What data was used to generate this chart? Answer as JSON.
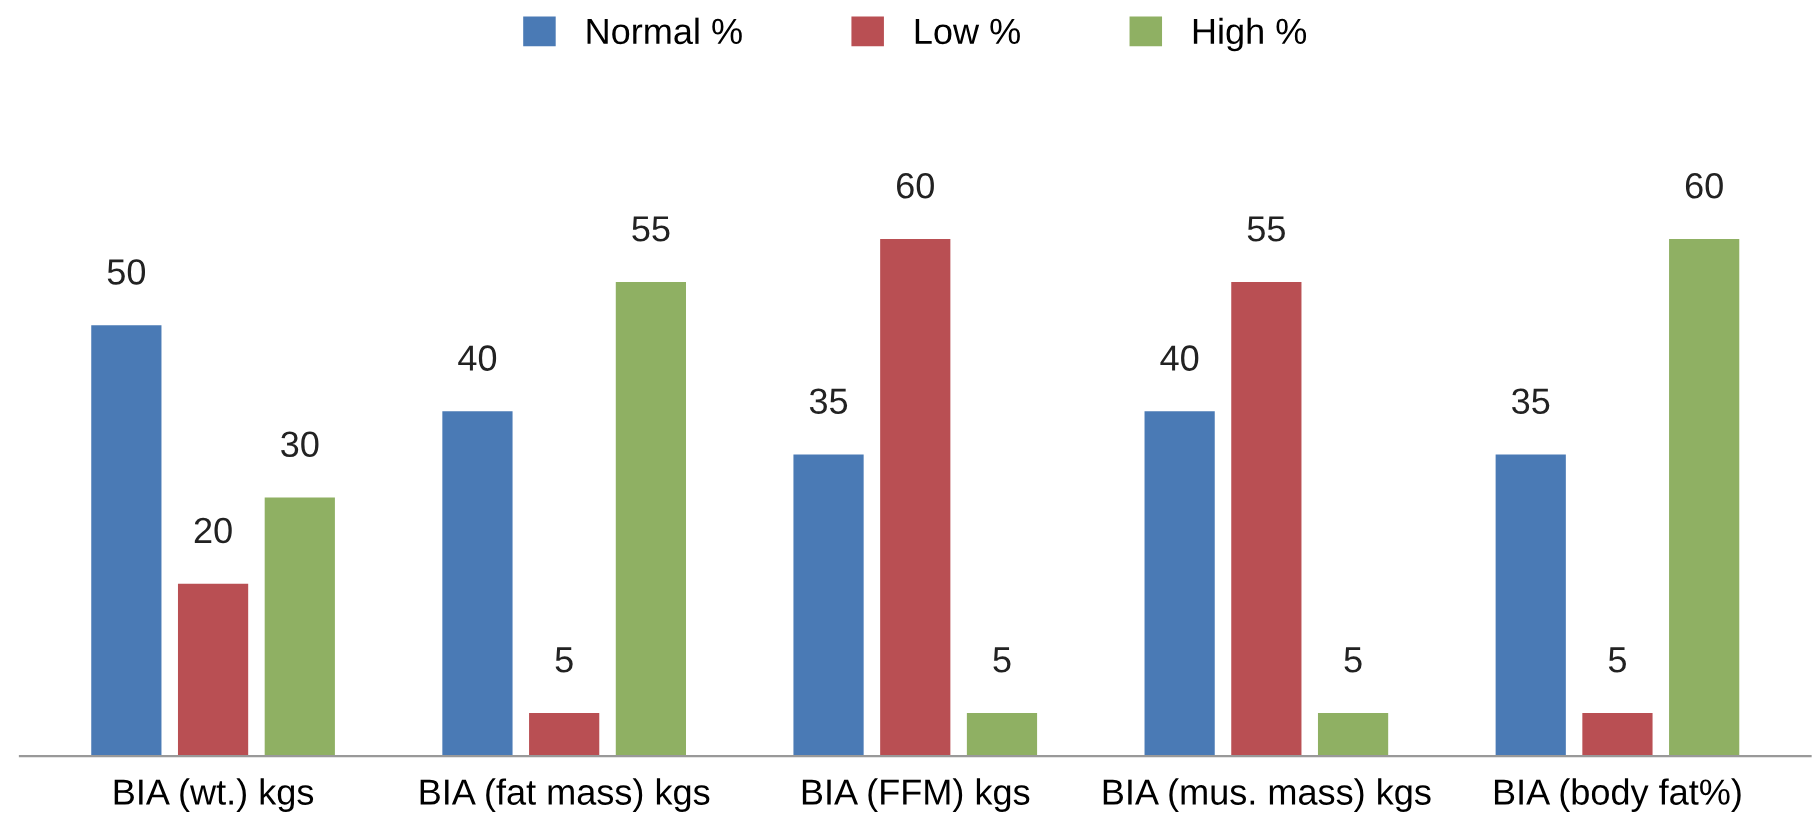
{
  "chart_data": {
    "type": "bar",
    "categories": [
      "BIA (wt.) kgs",
      "BIA (fat mass) kgs",
      "BIA (FFM) kgs",
      "BIA (mus. mass) kgs",
      "BIA (body fat%)"
    ],
    "series": [
      {
        "name": "Normal %",
        "color": "#4a7ab5",
        "values": [
          50,
          40,
          35,
          40,
          35
        ]
      },
      {
        "name": "Low %",
        "color": "#b94f53",
        "values": [
          20,
          5,
          60,
          55,
          5
        ]
      },
      {
        "name": "High %",
        "color": "#8fb063",
        "values": [
          30,
          55,
          5,
          5,
          60
        ]
      }
    ],
    "data_labels": true,
    "legend": "top",
    "grid": false
  }
}
